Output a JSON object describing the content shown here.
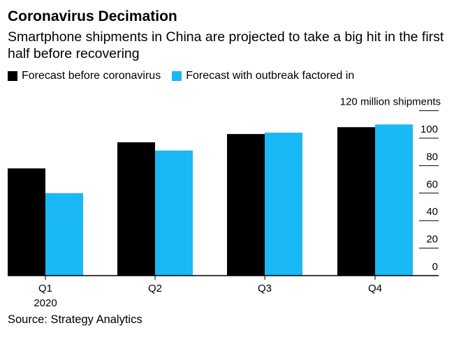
{
  "header": {
    "title": "Coronavirus Decimation",
    "subtitle": "Smartphone shipments in China are projected to take a big hit in the first half before recovering"
  },
  "legend": {
    "items": [
      {
        "label": "Forecast before coronavirus",
        "color": "#000000"
      },
      {
        "label": "Forecast with outbreak factored in",
        "color": "#1ab8f4"
      }
    ]
  },
  "footer": {
    "source": "Source: Strategy Analytics"
  },
  "chart_data": {
    "type": "bar",
    "title": "Coronavirus Decimation",
    "subtitle": "Smartphone shipments in China are projected to take a big hit in the first half before recovering",
    "categories": [
      "Q1",
      "Q2",
      "Q3",
      "Q4"
    ],
    "category_sublabels": [
      "2020",
      "",
      "",
      ""
    ],
    "series": [
      {
        "name": "Forecast before coronavirus",
        "color": "#000000",
        "values": [
          78,
          97,
          103,
          108
        ]
      },
      {
        "name": "Forecast with outbreak factored in",
        "color": "#1ab8f4",
        "values": [
          60,
          91,
          104,
          110
        ]
      }
    ],
    "ylabel": "120 million shipments",
    "ylim": [
      0,
      120
    ],
    "yticks": [
      0,
      20,
      40,
      60,
      80,
      100
    ],
    "ytick_labels": [
      "0",
      "20",
      "40",
      "60",
      "80",
      "100"
    ],
    "axis_side": "right",
    "grid": false,
    "legend_position": "top-left",
    "source": "Source: Strategy Analytics"
  }
}
